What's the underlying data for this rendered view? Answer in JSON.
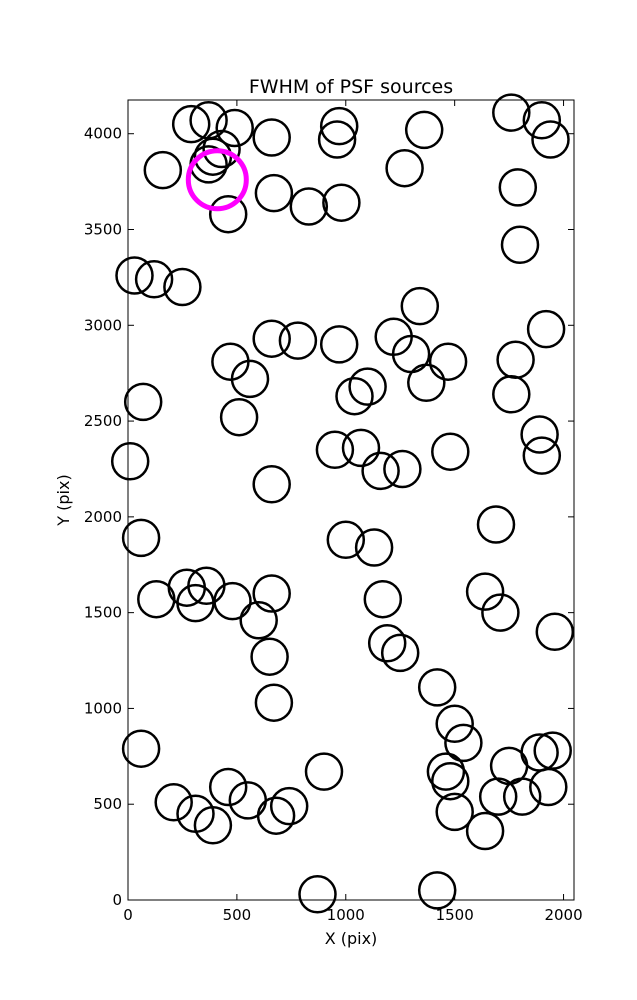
{
  "chart_data": {
    "type": "scatter",
    "title": "FWHM of PSF sources",
    "xlabel": "X (pix)",
    "ylabel": "Y (pix)",
    "xlim": [
      0,
      2048
    ],
    "ylim": [
      0,
      4176
    ],
    "xticks": [
      0,
      500,
      1000,
      1500,
      2000
    ],
    "yticks": [
      0,
      500,
      1000,
      1500,
      2000,
      2500,
      3000,
      3500,
      4000
    ],
    "grid": false,
    "marker": "open circle",
    "marker_color": "#000000",
    "highlight_color": "#ff00ff",
    "series": [
      {
        "points": [
          [
            290,
            4050
          ],
          [
            370,
            4070
          ],
          [
            490,
            4030
          ],
          [
            660,
            3980
          ],
          [
            970,
            4040
          ],
          [
            960,
            3970
          ],
          [
            1360,
            4020
          ],
          [
            1760,
            4110
          ],
          [
            1900,
            4070
          ],
          [
            1940,
            3970
          ],
          [
            430,
            3920
          ],
          [
            390,
            3880
          ],
          [
            370,
            3840
          ],
          [
            160,
            3810
          ],
          [
            1270,
            3820
          ],
          [
            1790,
            3720
          ],
          [
            670,
            3690
          ],
          [
            830,
            3620
          ],
          [
            980,
            3640
          ],
          [
            460,
            3580
          ],
          [
            1800,
            3420
          ],
          [
            30,
            3260
          ],
          [
            120,
            3240
          ],
          [
            250,
            3200
          ],
          [
            1340,
            3100
          ],
          [
            1920,
            2980
          ],
          [
            660,
            2930
          ],
          [
            780,
            2920
          ],
          [
            970,
            2900
          ],
          [
            1220,
            2940
          ],
          [
            1300,
            2850
          ],
          [
            1470,
            2810
          ],
          [
            1780,
            2820
          ],
          [
            470,
            2810
          ],
          [
            560,
            2720
          ],
          [
            1100,
            2680
          ],
          [
            1370,
            2700
          ],
          [
            1760,
            2640
          ],
          [
            1040,
            2630
          ],
          [
            70,
            2600
          ],
          [
            510,
            2520
          ],
          [
            1890,
            2430
          ],
          [
            1900,
            2320
          ],
          [
            950,
            2350
          ],
          [
            1070,
            2360
          ],
          [
            1480,
            2340
          ],
          [
            1160,
            2240
          ],
          [
            1260,
            2250
          ],
          [
            10,
            2290
          ],
          [
            660,
            2170
          ],
          [
            60,
            1890
          ],
          [
            1000,
            1880
          ],
          [
            1130,
            1840
          ],
          [
            1690,
            1960
          ],
          [
            270,
            1630
          ],
          [
            360,
            1640
          ],
          [
            310,
            1550
          ],
          [
            130,
            1570
          ],
          [
            480,
            1560
          ],
          [
            660,
            1600
          ],
          [
            1640,
            1610
          ],
          [
            1710,
            1500
          ],
          [
            1170,
            1570
          ],
          [
            1960,
            1400
          ],
          [
            600,
            1460
          ],
          [
            650,
            1270
          ],
          [
            1190,
            1340
          ],
          [
            1250,
            1290
          ],
          [
            670,
            1030
          ],
          [
            1420,
            1110
          ],
          [
            1500,
            920
          ],
          [
            1540,
            820
          ],
          [
            1460,
            670
          ],
          [
            1480,
            620
          ],
          [
            1500,
            460
          ],
          [
            1640,
            360
          ],
          [
            1700,
            540
          ],
          [
            1750,
            700
          ],
          [
            1810,
            540
          ],
          [
            1890,
            770
          ],
          [
            1950,
            780
          ],
          [
            1930,
            590
          ],
          [
            60,
            790
          ],
          [
            210,
            510
          ],
          [
            310,
            450
          ],
          [
            390,
            390
          ],
          [
            460,
            590
          ],
          [
            550,
            520
          ],
          [
            680,
            440
          ],
          [
            740,
            490
          ],
          [
            900,
            670
          ],
          [
            870,
            30
          ],
          [
            1420,
            50
          ]
        ]
      }
    ],
    "highlight_points": [
      [
        410,
        3760
      ]
    ]
  }
}
